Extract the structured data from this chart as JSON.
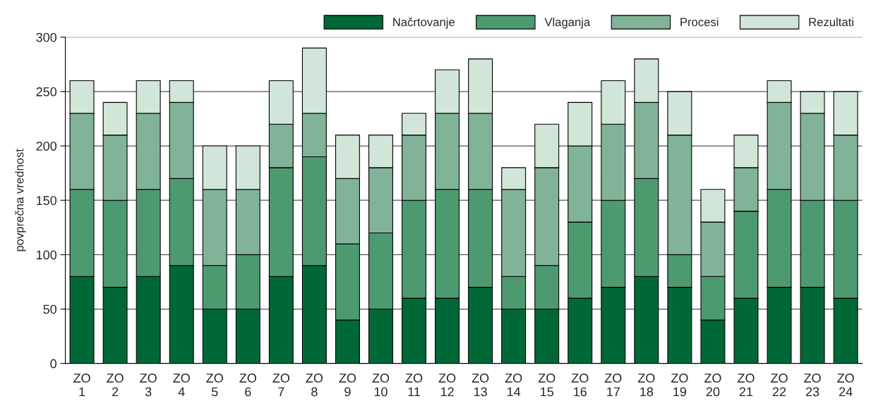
{
  "chart_data": {
    "type": "bar",
    "stacked": true,
    "ylabel": "povprečna vrednost",
    "categories": [
      "ZO\n1",
      "ZO\n2",
      "ZO\n3",
      "ZO\n4",
      "ZO\n5",
      "ZO\n6",
      "ZO\n7",
      "ZO\n8",
      "ZO\n9",
      "ZO\n10",
      "ZO\n11",
      "ZO\n12",
      "ZO\n13",
      "ZO\n14",
      "ZO\n15",
      "ZO\n16",
      "ZO\n17",
      "ZO\n18",
      "ZO\n19",
      "ZO\n20",
      "ZO\n21",
      "ZO\n22",
      "ZO\n23",
      "ZO\n24"
    ],
    "series": [
      {
        "name": "Načrtovanje",
        "color": "#006837",
        "values": [
          80,
          70,
          80,
          90,
          50,
          50,
          80,
          90,
          40,
          50,
          60,
          60,
          70,
          50,
          50,
          60,
          70,
          80,
          70,
          40,
          60,
          70,
          70,
          60
        ]
      },
      {
        "name": "Vlaganja",
        "color": "#4e9a70",
        "values": [
          80,
          80,
          80,
          80,
          40,
          50,
          100,
          100,
          70,
          70,
          90,
          100,
          90,
          30,
          40,
          70,
          80,
          90,
          30,
          40,
          80,
          90,
          80,
          90
        ]
      },
      {
        "name": "Procesi",
        "color": "#80b398",
        "values": [
          70,
          60,
          70,
          70,
          70,
          60,
          40,
          40,
          60,
          60,
          60,
          70,
          70,
          80,
          90,
          70,
          70,
          70,
          110,
          50,
          40,
          80,
          80,
          60
        ]
      },
      {
        "name": "Rezultati",
        "color": "#d1e5d9",
        "values": [
          30,
          30,
          30,
          20,
          40,
          40,
          40,
          60,
          40,
          30,
          20,
          40,
          50,
          20,
          40,
          40,
          40,
          40,
          40,
          30,
          30,
          20,
          20,
          40
        ]
      }
    ],
    "ylim": [
      0,
      300
    ],
    "yticks": [
      0,
      50,
      100,
      150,
      200,
      250,
      300
    ],
    "grid": "y",
    "legend": "top right"
  }
}
